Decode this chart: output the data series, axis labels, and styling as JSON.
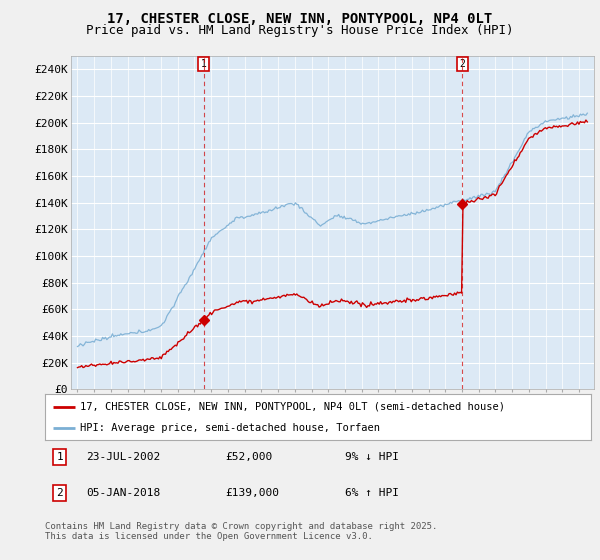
{
  "title_line1": "17, CHESTER CLOSE, NEW INN, PONTYPOOL, NP4 0LT",
  "title_line2": "Price paid vs. HM Land Registry's House Price Index (HPI)",
  "ylim": [
    0,
    250000
  ],
  "yticks": [
    0,
    20000,
    40000,
    60000,
    80000,
    100000,
    120000,
    140000,
    160000,
    180000,
    200000,
    220000,
    240000
  ],
  "ytick_labels": [
    "£0",
    "£20K",
    "£40K",
    "£60K",
    "£80K",
    "£100K",
    "£120K",
    "£140K",
    "£160K",
    "£180K",
    "£200K",
    "£220K",
    "£240K"
  ],
  "background_color": "#f0f0f0",
  "plot_bg_color": "#dce9f5",
  "grid_color": "#ffffff",
  "red_line_color": "#cc0000",
  "blue_line_color": "#7bafd4",
  "vline_color": "#cc0000",
  "marker1_x": 2002.56,
  "marker1_y": 52000,
  "marker2_x": 2018.02,
  "marker2_y": 139000,
  "legend_label_red": "17, CHESTER CLOSE, NEW INN, PONTYPOOL, NP4 0LT (semi-detached house)",
  "legend_label_blue": "HPI: Average price, semi-detached house, Torfaen",
  "table_row1_num": "1",
  "table_row1_date": "23-JUL-2002",
  "table_row1_price": "£52,000",
  "table_row1_hpi": "9% ↓ HPI",
  "table_row2_num": "2",
  "table_row2_date": "05-JAN-2018",
  "table_row2_price": "£139,000",
  "table_row2_hpi": "6% ↑ HPI",
  "footer": "Contains HM Land Registry data © Crown copyright and database right 2025.\nThis data is licensed under the Open Government Licence v3.0.",
  "title_fontsize": 10,
  "subtitle_fontsize": 9,
  "tick_fontsize": 8,
  "xlim_left": 1994.6,
  "xlim_right": 2025.9
}
